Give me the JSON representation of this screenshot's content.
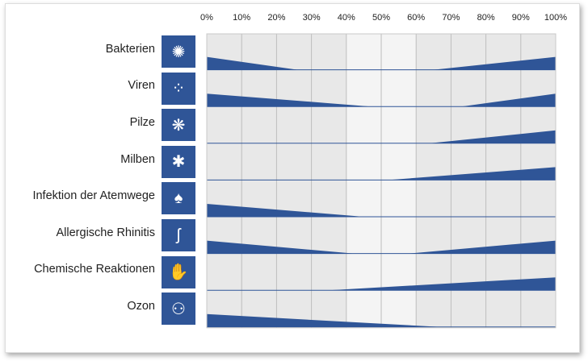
{
  "chart_data": {
    "type": "area",
    "x_ticks": [
      "0%",
      "10%",
      "20%",
      "30%",
      "40%",
      "50%",
      "60%",
      "70%",
      "80%",
      "90%",
      "100%"
    ],
    "xlim": [
      0,
      100
    ],
    "grid": true,
    "highlight_band": [
      40,
      60
    ],
    "color": "#2f5597",
    "rows": [
      {
        "label": "Bakterien",
        "icon": "bacteria-icon",
        "glyph": "✺",
        "left_end": 26,
        "right_start": 65
      },
      {
        "label": "Viren",
        "icon": "virus-icon",
        "glyph": "⁘",
        "left_end": 47,
        "right_start": 73
      },
      {
        "label": "Pilze",
        "icon": "fungi-icon",
        "glyph": "❋",
        "left_end": null,
        "right_start": 64
      },
      {
        "label": "Milben",
        "icon": "mite-icon",
        "glyph": "✱",
        "left_end": null,
        "right_start": 52
      },
      {
        "label": "Infektion der Atemwege",
        "icon": "lungs-icon",
        "glyph": "♠",
        "left_end": 45,
        "right_start": null
      },
      {
        "label": "Allergische Rhinitis",
        "icon": "nose-icon",
        "glyph": "ʃ",
        "left_end": 42,
        "right_start": 58
      },
      {
        "label": "Chemische Reaktionen",
        "icon": "hand-chemical-icon",
        "glyph": "✋",
        "left_end": null,
        "right_start": 35
      },
      {
        "label": "Ozon",
        "icon": "ozone-molecule-icon",
        "glyph": "⚇",
        "left_end": 67,
        "right_start": null
      }
    ]
  }
}
